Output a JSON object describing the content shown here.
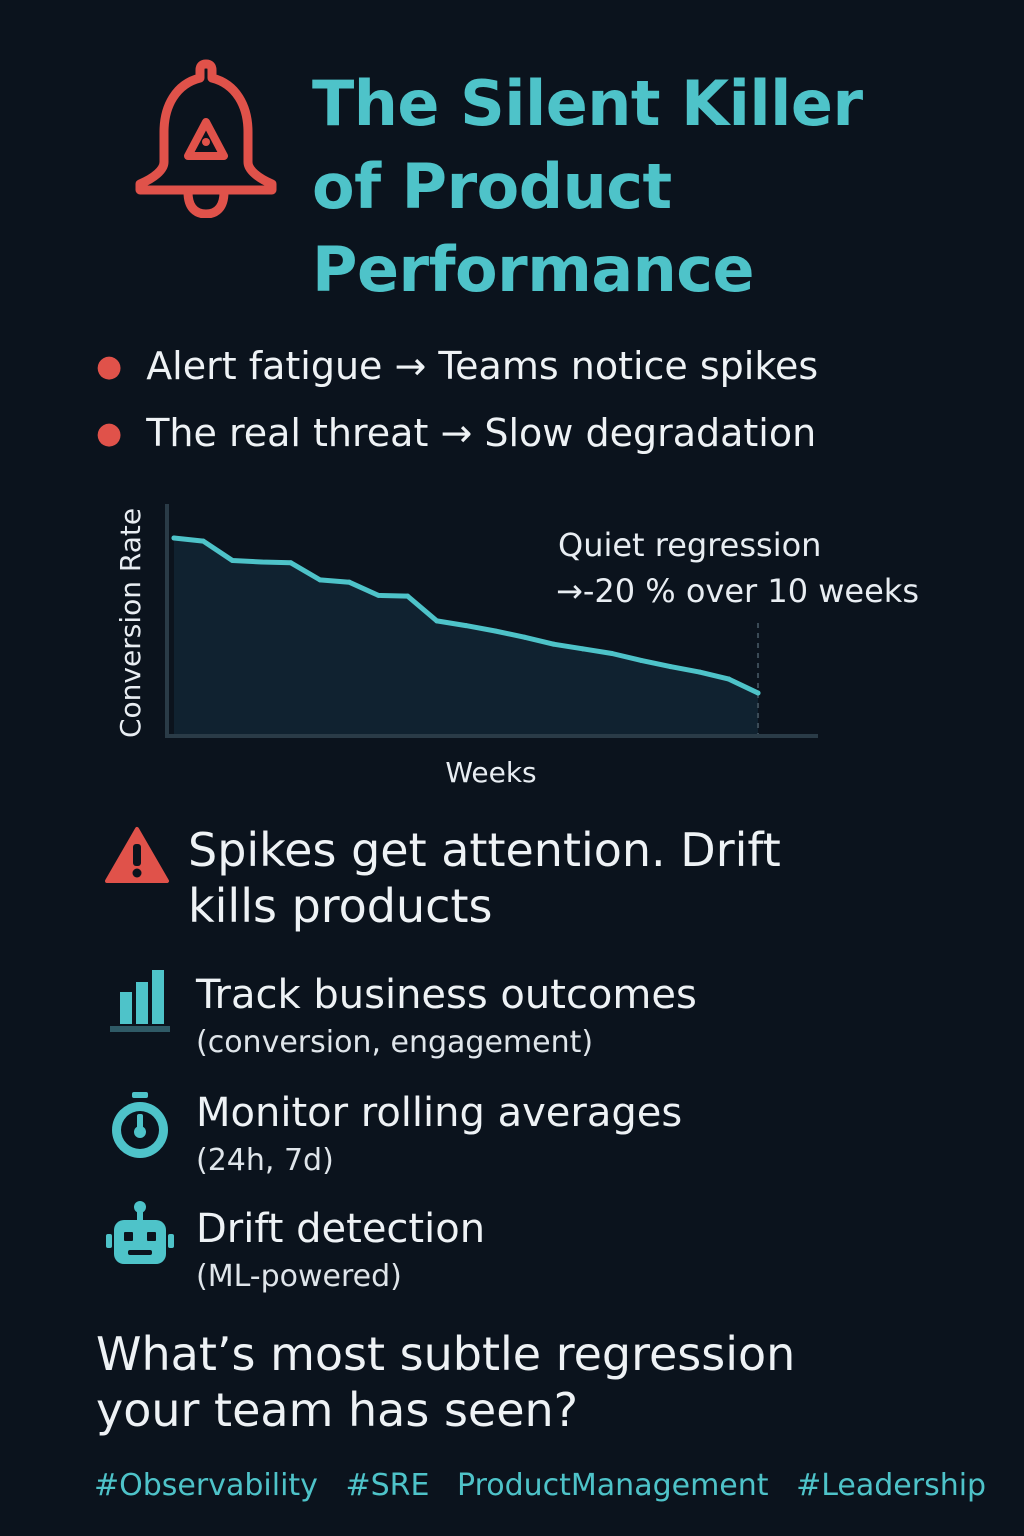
{
  "header": {
    "title_lines": [
      "The Silent Killer",
      "of Product",
      "Performance"
    ]
  },
  "bullets": [
    {
      "text": "Alert fatigue → Teams notice spikes"
    },
    {
      "text": "The real threat → Slow degradation"
    }
  ],
  "chart_data": {
    "type": "line",
    "xlabel": "Weeks",
    "ylabel": "Conversion Rate",
    "x": [
      0,
      0.5,
      1,
      1.5,
      2,
      2.5,
      3,
      3.5,
      4,
      4.5,
      5,
      5.5,
      6,
      6.5,
      7,
      7.5,
      8,
      8.5,
      9,
      9.5,
      10
    ],
    "values": [
      100,
      99.6,
      97.1,
      96.9,
      96.8,
      94.6,
      94.3,
      92.6,
      92.5,
      89.3,
      88.7,
      88.0,
      87.2,
      86.3,
      85.7,
      85.1,
      84.2,
      83.4,
      82.7,
      81.8,
      80.0
    ],
    "ylim": [
      0,
      100
    ],
    "xlim": [
      0,
      10
    ],
    "annotation": {
      "line1": "Quiet regression",
      "line2": "→-20 % over 10 weeks"
    },
    "fill": true,
    "grid": false,
    "colors": {
      "line": "#4ec3c9",
      "fill": "#122634",
      "axis": "#2a3b47",
      "marker_line": "#3a4a56"
    }
  },
  "warning": {
    "icon": "warning-triangle-icon",
    "lines": [
      "Spikes get attention. Drift",
      "kills products"
    ]
  },
  "tips": [
    {
      "icon": "bar-chart-icon",
      "title": "Track business outcomes",
      "subtitle": "(conversion, engagement)"
    },
    {
      "icon": "stopwatch-icon",
      "title": "Monitor rolling averages",
      "subtitle": "(24h, 7d)"
    },
    {
      "icon": "robot-icon",
      "title": "Drift detection",
      "subtitle": "(ML-powered)"
    }
  ],
  "question": {
    "lines": [
      "What’s most subtle regression",
      "your team has seen?"
    ]
  },
  "hashtags": [
    "#Observability",
    "#SRE",
    "ProductManagement",
    "#Leadership"
  ],
  "colors": {
    "background": "#0b131d",
    "accent": "#4ec3c9",
    "alert": "#e0524a",
    "text": "#eef2f5"
  }
}
